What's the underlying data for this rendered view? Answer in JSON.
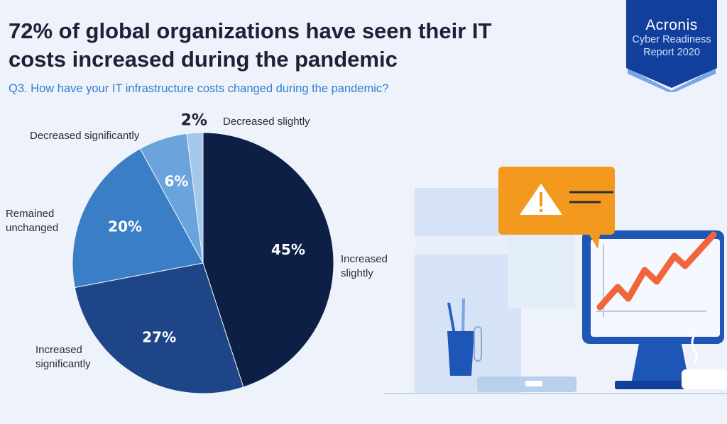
{
  "title": "72% of global organizations have seen their IT costs increased during the pandemic",
  "question": "Q3. How have your IT infrastructure costs changed during the pandemic?",
  "badge": {
    "brand": "Acronis",
    "line1": "Cyber Readiness",
    "line2": "Report 2020"
  },
  "chart_data": {
    "type": "pie",
    "title": "72% of global organizations have seen their IT costs increased during the pandemic",
    "subtitle": "Q3. How have your IT infrastructure costs changed during the pandemic?",
    "slices": [
      {
        "label": "Increased slightly",
        "value": 45,
        "display": "45%",
        "color": "#0d1f44"
      },
      {
        "label": "Increased significantly",
        "value": 27,
        "display": "27%",
        "color": "#1d4587"
      },
      {
        "label": "Remained unchanged",
        "value": 20,
        "display": "20%",
        "color": "#3a7ec6"
      },
      {
        "label": "Decreased significantly",
        "value": 6,
        "display": "6%",
        "color": "#6ba3dc"
      },
      {
        "label": "Decreased slightly",
        "value": 2,
        "display": "2%",
        "color": "#a3c8ec"
      }
    ],
    "start_angle_deg": 0,
    "direction": "clockwise"
  },
  "colors": {
    "background": "#eef2fa",
    "title": "#1c2137",
    "question": "#2f7fcf",
    "badge": "#123f9b",
    "alert": "#f39a1e",
    "trend_line": "#f0663a"
  },
  "illustration": {
    "icons": [
      "warning-icon",
      "monitor-icon",
      "trend-line-icon",
      "pencil-cup-icon",
      "paperclip-icon",
      "coffee-cup-icon"
    ]
  }
}
